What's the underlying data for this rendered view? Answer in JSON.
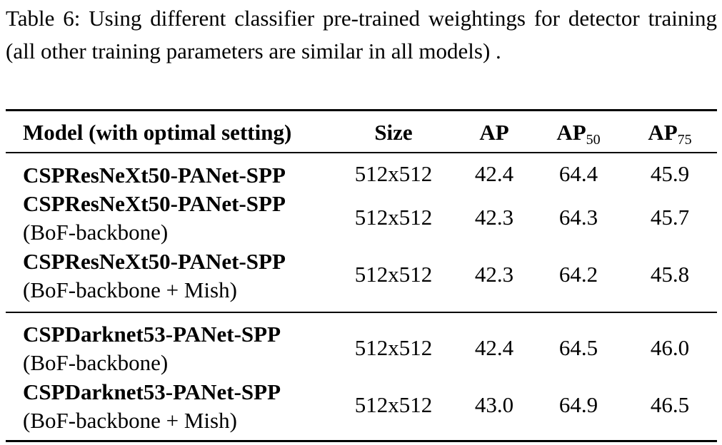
{
  "caption": "Table 6: Using different classifier pre-trained weightings for detector training (all other training parameters are similar in all models) .",
  "table": {
    "headers": {
      "model": "Model (with optimal setting)",
      "size": "Size",
      "ap": "AP",
      "ap50_base": "AP",
      "ap50_sub": "50",
      "ap75_base": "AP",
      "ap75_sub": "75"
    },
    "rows": [
      {
        "name": "CSPResNeXt50-PANet-SPP",
        "sub": "",
        "size": "512x512",
        "ap": "42.4",
        "ap50": "64.4",
        "ap75": "45.9"
      },
      {
        "name": "CSPResNeXt50-PANet-SPP",
        "sub": "(BoF-backbone)",
        "size": "512x512",
        "ap": "42.3",
        "ap50": "64.3",
        "ap75": "45.7"
      },
      {
        "name": "CSPResNeXt50-PANet-SPP",
        "sub": "(BoF-backbone + Mish)",
        "size": "512x512",
        "ap": "42.3",
        "ap50": "64.2",
        "ap75": "45.8"
      },
      {
        "name": "CSPDarknet53-PANet-SPP",
        "sub": "(BoF-backbone)",
        "size": "512x512",
        "ap": "42.4",
        "ap50": "64.5",
        "ap75": "46.0"
      },
      {
        "name": "CSPDarknet53-PANet-SPP",
        "sub": "(BoF-backbone + Mish)",
        "size": "512x512",
        "ap": "43.0",
        "ap50": "64.9",
        "ap75": "46.5"
      }
    ]
  }
}
